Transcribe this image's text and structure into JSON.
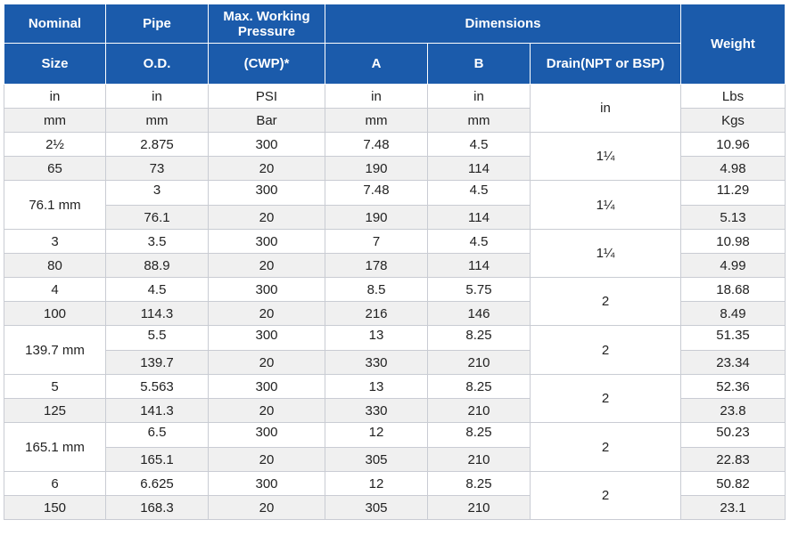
{
  "headers": {
    "nominal_top": "Nominal",
    "nominal_bottom": "Size",
    "pipe_top": "Pipe",
    "pipe_bottom": "O.D.",
    "cwp_line1": "Max. Working",
    "cwp_line2": "Pressure",
    "cwp_bottom": "(CWP)*",
    "dimensions": "Dimensions",
    "a": "A",
    "b": "B",
    "drain": "Drain(NPT or BSP)",
    "weight": "Weight"
  },
  "units": {
    "imperial": {
      "size": "in",
      "od": "in",
      "cwp": "PSI",
      "a": "in",
      "b": "in",
      "weight": "Lbs"
    },
    "metric": {
      "size": "mm",
      "od": "mm",
      "cwp": "Bar",
      "a": "mm",
      "b": "mm",
      "weight": "Kgs"
    },
    "drain": "in"
  },
  "rows": [
    {
      "size_top": "2½",
      "size_bottom": "65",
      "imperial": {
        "od": "2.875",
        "cwp": "300",
        "a": "7.48",
        "b": "4.5",
        "weight": "10.96"
      },
      "metric": {
        "od": "73",
        "cwp": "20",
        "a": "190",
        "b": "114",
        "weight": "4.98"
      },
      "drain": "1¼"
    },
    {
      "size_merged": "76.1 mm",
      "imperial": {
        "od": "3",
        "cwp": "300",
        "a": "7.48",
        "b": "4.5",
        "weight": "11.29"
      },
      "metric": {
        "od": "76.1",
        "cwp": "20",
        "a": "190",
        "b": "114",
        "weight": "5.13"
      },
      "drain": "1¼"
    },
    {
      "size_top": "3",
      "size_bottom": "80",
      "imperial": {
        "od": "3.5",
        "cwp": "300",
        "a": "7",
        "b": "4.5",
        "weight": "10.98"
      },
      "metric": {
        "od": "88.9",
        "cwp": "20",
        "a": "178",
        "b": "114",
        "weight": "4.99"
      },
      "drain": "1¼"
    },
    {
      "size_top": "4",
      "size_bottom": "100",
      "imperial": {
        "od": "4.5",
        "cwp": "300",
        "a": "8.5",
        "b": "5.75",
        "weight": "18.68"
      },
      "metric": {
        "od": "114.3",
        "cwp": "20",
        "a": "216",
        "b": "146",
        "weight": "8.49"
      },
      "drain": "2"
    },
    {
      "size_merged": "139.7 mm",
      "imperial": {
        "od": "5.5",
        "cwp": "300",
        "a": "13",
        "b": "8.25",
        "weight": "51.35"
      },
      "metric": {
        "od": "139.7",
        "cwp": "20",
        "a": "330",
        "b": "210",
        "weight": "23.34"
      },
      "drain": "2"
    },
    {
      "size_top": "5",
      "size_bottom": "125",
      "imperial": {
        "od": "5.563",
        "cwp": "300",
        "a": "13",
        "b": "8.25",
        "weight": "52.36"
      },
      "metric": {
        "od": "141.3",
        "cwp": "20",
        "a": "330",
        "b": "210",
        "weight": "23.8"
      },
      "drain": "2"
    },
    {
      "size_merged": "165.1 mm",
      "imperial": {
        "od": "6.5",
        "cwp": "300",
        "a": "12",
        "b": "8.25",
        "weight": "50.23"
      },
      "metric": {
        "od": "165.1",
        "cwp": "20",
        "a": "305",
        "b": "210",
        "weight": "22.83"
      },
      "drain": "2"
    },
    {
      "size_top": "6",
      "size_bottom": "150",
      "imperial": {
        "od": "6.625",
        "cwp": "300",
        "a": "12",
        "b": "8.25",
        "weight": "50.82"
      },
      "metric": {
        "od": "168.3",
        "cwp": "20",
        "a": "305",
        "b": "210",
        "weight": "23.1"
      },
      "drain": "2"
    }
  ]
}
